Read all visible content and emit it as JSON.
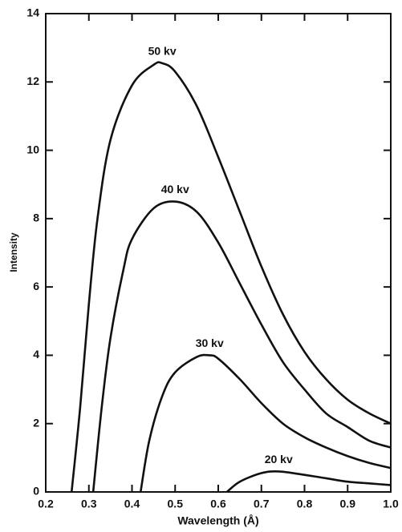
{
  "chart_data": {
    "type": "line",
    "x_label": "Wavelength (Å)",
    "y_label": "Intensity",
    "xlim": [
      0.2,
      1.0
    ],
    "ylim": [
      0,
      14
    ],
    "xticks": [
      0.2,
      0.3,
      0.4,
      0.5,
      0.6,
      0.7,
      0.8,
      0.9,
      {
        "value": 1.0,
        "label": "1.0"
      }
    ],
    "yticks": [
      0,
      2,
      4,
      6,
      8,
      10,
      12,
      14
    ],
    "series": [
      {
        "name": "50 kv",
        "color": "#111111",
        "x": [
          0.26,
          0.28,
          0.3,
          0.32,
          0.35,
          0.4,
          0.45,
          0.47,
          0.5,
          0.55,
          0.6,
          0.65,
          0.7,
          0.75,
          0.8,
          0.85,
          0.9,
          0.95,
          1.0
        ],
        "values": [
          0,
          2.5,
          5.5,
          8,
          10.3,
          11.9,
          12.5,
          12.55,
          12.3,
          11.3,
          9.8,
          8.2,
          6.6,
          5.2,
          4.1,
          3.3,
          2.7,
          2.3,
          2.0
        ]
      },
      {
        "name": "40 kv",
        "color": "#111111",
        "x": [
          0.31,
          0.33,
          0.35,
          0.38,
          0.4,
          0.45,
          0.5,
          0.55,
          0.6,
          0.65,
          0.7,
          0.75,
          0.8,
          0.85,
          0.9,
          0.95,
          1.0
        ],
        "values": [
          0,
          2.5,
          4.5,
          6.5,
          7.4,
          8.3,
          8.5,
          8.2,
          7.3,
          6.1,
          4.9,
          3.8,
          3.0,
          2.3,
          1.9,
          1.5,
          1.3
        ]
      },
      {
        "name": "30 kv",
        "color": "#111111",
        "x": [
          0.42,
          0.44,
          0.47,
          0.5,
          0.55,
          0.58,
          0.6,
          0.65,
          0.7,
          0.75,
          0.8,
          0.85,
          0.9,
          0.95,
          1.0
        ],
        "values": [
          0,
          1.5,
          2.8,
          3.5,
          3.95,
          4.0,
          3.9,
          3.3,
          2.6,
          2.0,
          1.6,
          1.3,
          1.05,
          0.85,
          0.7
        ]
      },
      {
        "name": "20 kv",
        "color": "#111111",
        "x": [
          0.62,
          0.65,
          0.7,
          0.74,
          0.8,
          0.85,
          0.9,
          0.95,
          1.0
        ],
        "values": [
          0,
          0.3,
          0.55,
          0.6,
          0.5,
          0.4,
          0.3,
          0.25,
          0.2
        ]
      }
    ]
  }
}
